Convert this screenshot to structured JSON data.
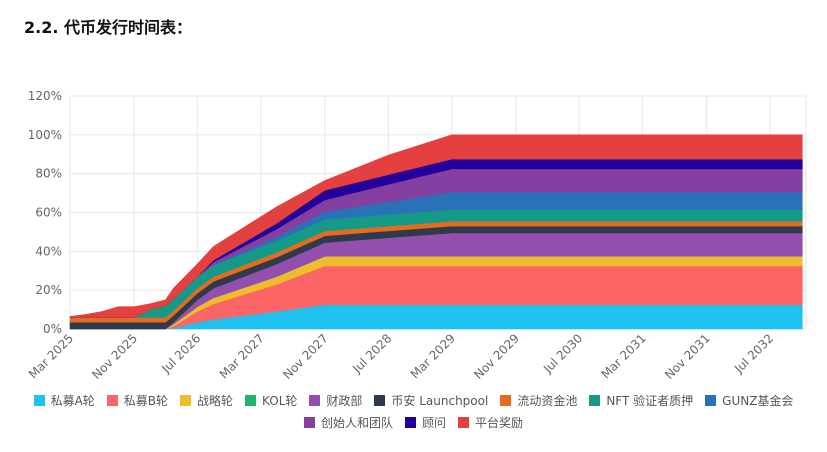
{
  "page": {
    "heading": "2.2. 代币发行时间表："
  },
  "chart_data": {
    "type": "area",
    "stacked": true,
    "title": "",
    "xlabel": "",
    "ylabel": "",
    "ylim": [
      0,
      120
    ],
    "y_ticks": [
      0,
      20,
      40,
      60,
      80,
      100,
      120
    ],
    "y_tick_labels": [
      "0%",
      "20%",
      "40%",
      "60%",
      "80%",
      "100%",
      "120%"
    ],
    "x_tick_labels": [
      "Mar 2025",
      "Nov 2025",
      "Jul 2026",
      "Mar 2027",
      "Nov 2027",
      "Jul 2028",
      "Mar 2029",
      "Nov 2029",
      "Jul 2030",
      "Mar 2031",
      "Nov 2031",
      "Jul 2032"
    ],
    "x": [
      "2025-03",
      "2025-05",
      "2025-07",
      "2025-09",
      "2025-10",
      "2025-11",
      "2026-01",
      "2026-03",
      "2026-04",
      "2026-07",
      "2026-09",
      "2027-05",
      "2027-11",
      "2028-07",
      "2029-03",
      "2030-03",
      "2031-03",
      "2032-03",
      "2032-11"
    ],
    "grid": true,
    "legend_position": "bottom",
    "series": [
      {
        "name": "私募A轮",
        "color": "#1fc1ee",
        "values": [
          0,
          0,
          0,
          0,
          0,
          0,
          0,
          0,
          0.5,
          3.5,
          5,
          9,
          12.5,
          12.5,
          12.5,
          12.5,
          12.5,
          12.5,
          12.5
        ]
      },
      {
        "name": "私募B轮",
        "color": "#fc6565",
        "values": [
          0,
          0,
          0,
          0,
          0,
          0,
          0,
          0,
          1,
          5.5,
          8,
          14,
          20,
          20,
          20,
          20,
          20,
          20,
          20
        ]
      },
      {
        "name": "战略轮",
        "color": "#eebd2b",
        "values": [
          0,
          0,
          0,
          0,
          0,
          0,
          0,
          0,
          1,
          2.5,
          3,
          4,
          5,
          5,
          5,
          5,
          5,
          5,
          5
        ]
      },
      {
        "name": "KOL轮",
        "color": "#22b36a",
        "values": [
          0,
          0,
          0,
          0,
          0,
          0,
          0,
          0,
          0,
          0,
          0,
          0,
          0,
          0,
          0,
          0,
          0,
          0,
          0
        ]
      },
      {
        "name": "财政部",
        "color": "#934fad",
        "values": [
          0,
          0,
          0,
          0,
          0,
          0,
          0,
          0,
          1,
          3.5,
          5,
          6.5,
          7,
          9.5,
          12,
          12,
          12,
          12,
          12
        ]
      },
      {
        "name": "币安 Launchpool",
        "color": "#2f3b4a",
        "values": [
          3.5,
          3.5,
          3.5,
          3.5,
          3.5,
          3.5,
          3.5,
          3.5,
          3.5,
          3.5,
          3.5,
          3.5,
          3.5,
          3.5,
          3.5,
          3.5,
          3.5,
          3.5,
          3.5
        ]
      },
      {
        "name": "流动资金池",
        "color": "#e56b21",
        "values": [
          2.5,
          2.5,
          2.5,
          2.5,
          2.5,
          2.5,
          2.5,
          2.5,
          2.5,
          2.5,
          2.5,
          2.5,
          2.5,
          2.5,
          2.5,
          2.5,
          2.5,
          2.5,
          2.5
        ]
      },
      {
        "name": "NFT 验证者质押",
        "color": "#159a87",
        "values": [
          0,
          0,
          0,
          0,
          0,
          0,
          4,
          6,
          6,
          6,
          6,
          6,
          6,
          6,
          6,
          6,
          6,
          6,
          6
        ]
      },
      {
        "name": "GUNZ基金会",
        "color": "#2a72b7",
        "values": [
          0,
          0,
          0,
          0,
          0,
          0,
          0,
          0,
          0,
          0,
          0,
          2,
          4,
          6.5,
          9,
          9,
          9,
          9,
          9
        ]
      },
      {
        "name": "创始人和团队",
        "color": "#843fa1",
        "values": [
          0,
          0,
          0,
          0,
          0,
          0,
          0,
          0,
          0,
          0,
          1.5,
          4,
          6,
          9,
          12,
          12,
          12,
          12,
          12
        ]
      },
      {
        "name": "顾问",
        "color": "#23009c",
        "values": [
          0,
          0,
          0,
          0,
          0,
          0,
          0,
          0,
          0,
          0,
          1,
          3,
          5,
          5,
          5,
          5,
          5,
          5,
          5
        ]
      },
      {
        "name": "平台奖励",
        "color": "#e54040",
        "values": [
          0.5,
          1.5,
          3,
          5.5,
          5.5,
          5.5,
          3,
          3,
          5.5,
          6.5,
          7,
          8.5,
          5,
          10,
          12.5,
          12.5,
          12.5,
          12.5,
          12.5
        ]
      }
    ]
  }
}
